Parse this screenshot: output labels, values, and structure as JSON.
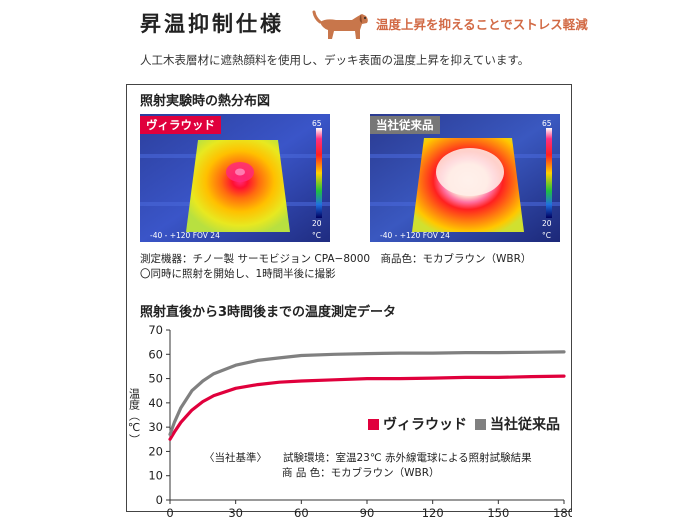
{
  "header": {
    "title": "昇温抑制仕様",
    "tagline": "温度上昇を抑えることでストレス軽減",
    "intro": "人工木表層材に遮熱顔料を使用し、デッキ表面の温度上昇を抑えています。",
    "mascot_icon": "dog-icon"
  },
  "heatmap": {
    "title": "照射実験時の熱分布図",
    "left_label": "ヴィラウッド",
    "right_label": "当社従来品",
    "scale_max": "65",
    "scale_min": "20",
    "scale_unit": "°C",
    "fov_text": "-40 - +120 FOV 24",
    "measure_line1": "測定機器：チノー製 サーモビジョン CPA−8000　商品色：モカブラウン（WBR）",
    "measure_line2": "〇同時に照射を開始し、1時間半後に撮影"
  },
  "notes": {
    "kijun": "〈当社基準〉",
    "line1": "試験環境：室温23℃ 赤外線電球による照射試験結果",
    "line2": "商 品 色：モカブラウン（WBR）"
  },
  "colors": {
    "villawood": "#e0003c",
    "conventional": "#808080",
    "tagline": "#d26a45"
  },
  "chart_data": {
    "type": "line",
    "title": "照射直後から3時間後までの温度測定データ",
    "xlabel": "",
    "ylabel": "温度（℃）",
    "xlim": [
      0,
      180
    ],
    "ylim": [
      0,
      70
    ],
    "xticks": [
      0,
      30,
      60,
      90,
      120,
      150,
      180
    ],
    "yticks": [
      0,
      10,
      20,
      30,
      40,
      50,
      60,
      70
    ],
    "grid": false,
    "legend_position": "lower-right",
    "series": [
      {
        "name": "ヴィラウッド",
        "x": [
          0,
          2,
          5,
          10,
          15,
          20,
          30,
          40,
          50,
          60,
          75,
          90,
          105,
          120,
          135,
          150,
          165,
          180
        ],
        "values": [
          25,
          28,
          32,
          37,
          40.5,
          43,
          46,
          47.5,
          48.5,
          49,
          49.5,
          50,
          50,
          50.2,
          50.5,
          50.5,
          50.8,
          51
        ]
      },
      {
        "name": "当社従来品",
        "x": [
          0,
          2,
          5,
          10,
          15,
          20,
          30,
          40,
          50,
          60,
          75,
          90,
          105,
          120,
          135,
          150,
          165,
          180
        ],
        "values": [
          27,
          32,
          38,
          45,
          49,
          52,
          55.5,
          57.5,
          58.5,
          59.5,
          60,
          60.3,
          60.5,
          60.5,
          60.7,
          60.7,
          60.8,
          61
        ]
      }
    ]
  }
}
